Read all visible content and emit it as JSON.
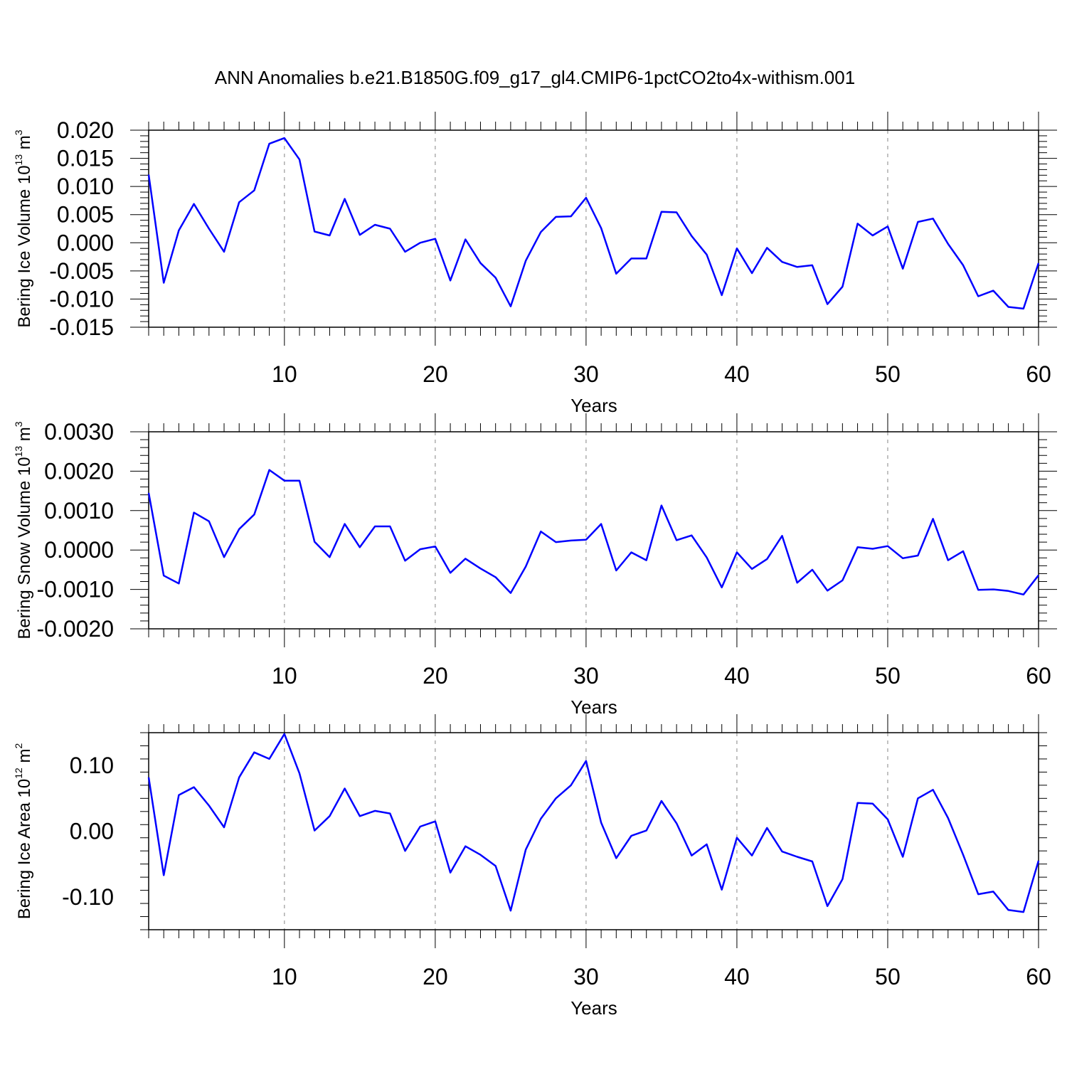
{
  "title": "ANN Anomalies b.e21.B1850G.f09_g17_gl4.CMIP6-1pctCO2to4x-withism.001",
  "chart_data": [
    {
      "type": "line",
      "ylabel_main": "Bering Ice Volume 10",
      "ylabel_exp": "13",
      "ylabel_unit": " m",
      "ylabel_unit_exp": "3",
      "xlabel": "Years",
      "xlim": [
        1,
        60
      ],
      "ylim": [
        -0.015,
        0.02
      ],
      "xticks": [
        10,
        20,
        30,
        40,
        50,
        60
      ],
      "yticks": [
        -0.015,
        -0.01,
        -0.005,
        0,
        0.005,
        0.01,
        0.015,
        0.02
      ],
      "ytick_labels": [
        "-0.015",
        "-0.010",
        "-0.005",
        "0.000",
        "0.005",
        "0.010",
        "0.015",
        "0.020"
      ],
      "xgrid_dashed": [
        10,
        20,
        30,
        40,
        50
      ],
      "series": [
        {
          "color": "#0000ff",
          "x": [
            1,
            2,
            3,
            4,
            5,
            6,
            7,
            8,
            9,
            10,
            11,
            12,
            13,
            14,
            15,
            16,
            17,
            18,
            19,
            20,
            21,
            22,
            23,
            24,
            25,
            26,
            27,
            28,
            29,
            30,
            31,
            32,
            33,
            34,
            35,
            36,
            37,
            38,
            39,
            40,
            41,
            42,
            43,
            44,
            45,
            46,
            47,
            48,
            49,
            50,
            51,
            52,
            53,
            54,
            55,
            56,
            57,
            58,
            59,
            60
          ],
          "y": [
            0.0121,
            -0.0071,
            0.0022,
            0.0069,
            0.0025,
            -0.0016,
            0.0072,
            0.0093,
            0.0176,
            0.0186,
            0.0148,
            0.002,
            0.0013,
            0.0078,
            0.0014,
            0.0032,
            0.0025,
            -0.0016,
            0.0,
            0.0007,
            -0.0067,
            0.0006,
            -0.0036,
            -0.0062,
            -0.0113,
            -0.0032,
            0.0019,
            0.0046,
            0.0047,
            0.008,
            0.0026,
            -0.0055,
            -0.0028,
            -0.0028,
            0.0055,
            0.0054,
            0.0012,
            -0.0021,
            -0.0093,
            -0.001,
            -0.0054,
            -0.0009,
            -0.0034,
            -0.0043,
            -0.004,
            -0.0109,
            -0.0078,
            0.0034,
            0.0013,
            0.0029,
            -0.0046,
            0.0037,
            0.0043,
            -0.0002,
            -0.004,
            -0.0095,
            -0.0085,
            -0.0114,
            -0.0117,
            -0.0036
          ]
        }
      ]
    },
    {
      "type": "line",
      "ylabel_main": "Bering Snow Volume 10",
      "ylabel_exp": "13",
      "ylabel_unit": " m",
      "ylabel_unit_exp": "3",
      "xlabel": "Years",
      "xlim": [
        1,
        60
      ],
      "ylim": [
        -0.002,
        0.003
      ],
      "xticks": [
        10,
        20,
        30,
        40,
        50,
        60
      ],
      "yticks": [
        -0.002,
        -0.001,
        0,
        0.001,
        0.002,
        0.003
      ],
      "ytick_labels": [
        "-0.0020",
        "-0.0010",
        "0.0000",
        "0.0010",
        "0.0020",
        "0.0030"
      ],
      "xgrid_dashed": [
        10,
        20,
        30,
        40,
        50
      ],
      "series": [
        {
          "color": "#0000ff",
          "x": [
            1,
            2,
            3,
            4,
            5,
            6,
            7,
            8,
            9,
            10,
            11,
            12,
            13,
            14,
            15,
            16,
            17,
            18,
            19,
            20,
            21,
            22,
            23,
            24,
            25,
            26,
            27,
            28,
            29,
            30,
            31,
            32,
            33,
            34,
            35,
            36,
            37,
            38,
            39,
            40,
            41,
            42,
            43,
            44,
            45,
            46,
            47,
            48,
            49,
            50,
            51,
            52,
            53,
            54,
            55,
            56,
            57,
            58,
            59,
            60
          ],
          "y": [
            0.00145,
            -0.00065,
            -0.00085,
            0.00095,
            0.00073,
            -0.00018,
            0.00053,
            0.0009,
            0.00203,
            0.00176,
            0.00176,
            0.00021,
            -0.00018,
            0.00066,
            7e-05,
            0.0006,
            0.0006,
            -0.00027,
            2e-05,
            9e-05,
            -0.00058,
            -0.00022,
            -0.00047,
            -0.00069,
            -0.00109,
            -0.00042,
            0.00047,
            0.0002,
            0.00024,
            0.00026,
            0.00066,
            -0.00052,
            -6e-05,
            -0.00026,
            0.00113,
            0.00025,
            0.00037,
            -0.00019,
            -0.00095,
            -6e-05,
            -0.00048,
            -0.00023,
            0.00036,
            -0.00083,
            -0.0005,
            -0.00103,
            -0.00077,
            7e-05,
            3e-05,
            0.0001,
            -0.00021,
            -0.00014,
            0.00079,
            -0.00026,
            -3e-05,
            -0.00101,
            -0.001,
            -0.00104,
            -0.00113,
            -0.00064
          ]
        }
      ]
    },
    {
      "type": "line",
      "ylabel_main": "Bering Ice Area 10",
      "ylabel_exp": "12",
      "ylabel_unit": " m",
      "ylabel_unit_exp": "2",
      "xlabel": "Years",
      "xlim": [
        1,
        60
      ],
      "ylim": [
        -0.15,
        0.15
      ],
      "xticks": [
        10,
        20,
        30,
        40,
        50,
        60
      ],
      "yticks": [
        -0.1,
        0,
        0.1
      ],
      "ytick_labels": [
        "-0.10",
        "0.00",
        "0.10"
      ],
      "xgrid_dashed": [
        10,
        20,
        30,
        40,
        50
      ],
      "series": [
        {
          "color": "#0000ff",
          "x": [
            1,
            2,
            3,
            4,
            5,
            6,
            7,
            8,
            9,
            10,
            11,
            12,
            13,
            14,
            15,
            16,
            17,
            18,
            19,
            20,
            21,
            22,
            23,
            24,
            25,
            26,
            27,
            28,
            29,
            30,
            31,
            32,
            33,
            34,
            35,
            36,
            37,
            38,
            39,
            40,
            41,
            42,
            43,
            44,
            45,
            46,
            47,
            48,
            49,
            50,
            51,
            52,
            53,
            54,
            55,
            56,
            57,
            58,
            59,
            60
          ],
          "y": [
            0.082,
            -0.067,
            0.055,
            0.067,
            0.039,
            0.006,
            0.082,
            0.12,
            0.11,
            0.148,
            0.088,
            0.001,
            0.023,
            0.065,
            0.023,
            0.031,
            0.027,
            -0.03,
            0.007,
            0.015,
            -0.063,
            -0.023,
            -0.036,
            -0.053,
            -0.121,
            -0.028,
            0.019,
            0.05,
            0.07,
            0.107,
            0.013,
            -0.041,
            -0.007,
            0.001,
            0.046,
            0.012,
            -0.037,
            -0.02,
            -0.089,
            -0.01,
            -0.037,
            0.005,
            -0.031,
            -0.039,
            -0.046,
            -0.114,
            -0.073,
            0.043,
            0.042,
            0.018,
            -0.039,
            0.05,
            0.063,
            0.02,
            -0.036,
            -0.096,
            -0.092,
            -0.12,
            -0.123,
            -0.045
          ]
        }
      ]
    }
  ]
}
